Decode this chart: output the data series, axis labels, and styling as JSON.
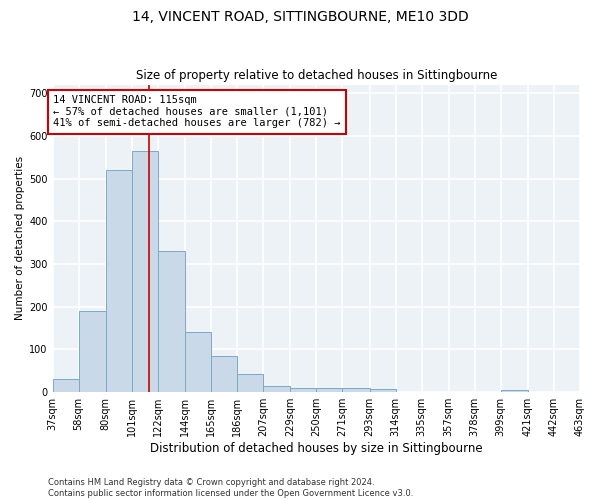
{
  "title": "14, VINCENT ROAD, SITTINGBOURNE, ME10 3DD",
  "subtitle": "Size of property relative to detached houses in Sittingbourne",
  "xlabel": "Distribution of detached houses by size in Sittingbourne",
  "ylabel": "Number of detached properties",
  "footnote": "Contains HM Land Registry data © Crown copyright and database right 2024.\nContains public sector information licensed under the Open Government Licence v3.0.",
  "bin_edges": [
    37,
    58,
    80,
    101,
    122,
    144,
    165,
    186,
    207,
    229,
    250,
    271,
    293,
    314,
    335,
    357,
    378,
    399,
    421,
    442,
    463
  ],
  "bar_heights": [
    30,
    190,
    520,
    565,
    330,
    140,
    85,
    42,
    14,
    10,
    10,
    10,
    8,
    0,
    0,
    0,
    0,
    5,
    0,
    0
  ],
  "bar_color": "#c9d9e8",
  "bar_edge_color": "#7aaac8",
  "property_line_x": 115,
  "property_line_color": "#cc0000",
  "annotation_text": "14 VINCENT ROAD: 115sqm\n← 57% of detached houses are smaller (1,101)\n41% of semi-detached houses are larger (782) →",
  "annotation_box_color": "#cc0000",
  "ylim": [
    0,
    720
  ],
  "yticks": [
    0,
    100,
    200,
    300,
    400,
    500,
    600,
    700
  ],
  "background_color": "#edf2f7",
  "grid_color": "#ffffff",
  "title_fontsize": 10,
  "subtitle_fontsize": 8.5,
  "xlabel_fontsize": 8.5,
  "ylabel_fontsize": 7.5,
  "tick_fontsize": 7,
  "annotation_fontsize": 7.5,
  "footnote_fontsize": 6
}
